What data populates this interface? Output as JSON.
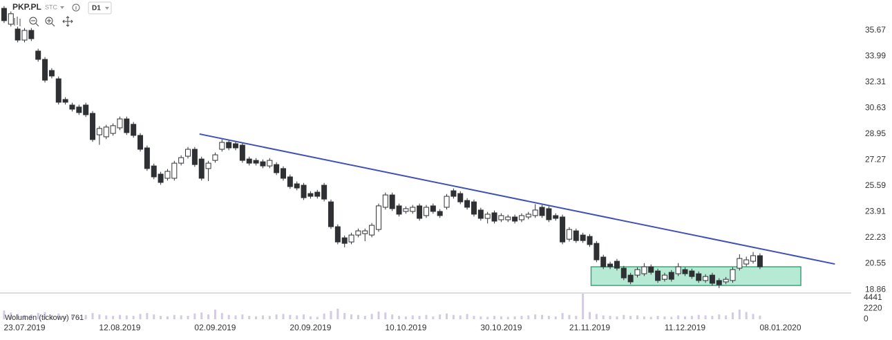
{
  "chart_data": {
    "type": "candlestick",
    "title": "PKP.PL",
    "source": "STC",
    "interval": "D1",
    "volume_label": "Wolumen (tickowy)",
    "colors": {
      "down": "#2f3033",
      "up": "#ffffff",
      "outline": "#2f3033",
      "volume": "#d3cbe3"
    },
    "xlim": [
      -0.6,
      124.2
    ],
    "ylim": [
      18.64,
      37.64
    ],
    "yticks": [
      35.67,
      33.99,
      32.31,
      30.63,
      28.95,
      27.27,
      25.59,
      23.91,
      22.23,
      20.55,
      18.86
    ],
    "volume_ylim": [
      0,
      5444
    ],
    "volume_yticks": [
      4441,
      2220,
      0
    ],
    "xticks": [
      {
        "value": 3,
        "label": "23.07.2019"
      },
      {
        "value": 17,
        "label": "12.08.2019"
      },
      {
        "value": 31,
        "label": "02.09.2019"
      },
      {
        "value": 45,
        "label": "20.09.2019"
      },
      {
        "value": 59,
        "label": "10.10.2019"
      },
      {
        "value": 73,
        "label": "30.10.2019"
      },
      {
        "value": 86,
        "label": "21.11.2019"
      },
      {
        "value": 100,
        "label": "11.12.2019"
      },
      {
        "value": 114,
        "label": "08.01.2020"
      }
    ],
    "ohlc": [
      [
        37.1,
        37.25,
        36.15,
        36.3
      ],
      [
        36.07,
        36.9,
        35.92,
        36.75
      ],
      [
        35.76,
        35.91,
        34.89,
        35.04
      ],
      [
        35.04,
        35.82,
        34.89,
        35.67
      ],
      [
        35.67,
        35.82,
        34.98,
        35.13
      ],
      [
        34.33,
        34.48,
        33.64,
        33.79
      ],
      [
        33.79,
        33.94,
        32.29,
        32.44
      ],
      [
        33.07,
        33.22,
        32.56,
        32.71
      ],
      [
        32.53,
        32.68,
        30.86,
        31.01
      ],
      [
        31.19,
        31.34,
        30.86,
        31.01
      ],
      [
        30.83,
        30.98,
        30.41,
        30.56
      ],
      [
        30.7,
        30.85,
        30.19,
        30.34
      ],
      [
        30.83,
        30.98,
        30.05,
        30.2
      ],
      [
        30.29,
        30.44,
        28.44,
        28.59
      ],
      [
        28.9,
        29.46,
        28.25,
        29.31
      ],
      [
        28.77,
        29.55,
        28.62,
        29.4
      ],
      [
        28.99,
        29.64,
        28.84,
        29.49
      ],
      [
        29.35,
        30.08,
        29.2,
        29.93
      ],
      [
        29.93,
        30.08,
        28.89,
        29.04
      ],
      [
        29.58,
        29.73,
        28.71,
        28.86
      ],
      [
        28.86,
        29.01,
        27.81,
        27.96
      ],
      [
        28.05,
        28.2,
        26.56,
        26.71
      ],
      [
        26.88,
        27.03,
        26.02,
        26.17
      ],
      [
        26.35,
        26.5,
        25.66,
        25.81
      ],
      [
        26.08,
        26.68,
        25.93,
        26.53
      ],
      [
        26.08,
        27.21,
        25.93,
        27.06
      ],
      [
        27.06,
        27.57,
        26.91,
        27.42
      ],
      [
        27.51,
        28.11,
        27.36,
        27.96
      ],
      [
        27.96,
        28.11,
        26.82,
        26.97
      ],
      [
        27.33,
        27.48,
        25.93,
        26.08
      ],
      [
        26.71,
        27.21,
        25.9,
        27.06
      ],
      [
        27.24,
        27.75,
        27.09,
        27.6
      ],
      [
        27.96,
        28.6,
        27.81,
        28.41
      ],
      [
        28.41,
        28.56,
        27.9,
        28.05
      ],
      [
        28.32,
        28.47,
        27.9,
        28.05
      ],
      [
        28.23,
        28.38,
        27.09,
        27.24
      ],
      [
        27.33,
        27.48,
        26.91,
        27.06
      ],
      [
        27.24,
        27.39,
        26.91,
        27.06
      ],
      [
        27.15,
        27.3,
        26.73,
        26.88
      ],
      [
        26.88,
        27.39,
        26.73,
        27.24
      ],
      [
        26.97,
        27.12,
        26.29,
        26.44
      ],
      [
        26.71,
        26.86,
        25.93,
        26.08
      ],
      [
        26.17,
        26.32,
        25.39,
        25.54
      ],
      [
        25.72,
        25.87,
        25.3,
        25.45
      ],
      [
        25.63,
        25.78,
        24.67,
        24.82
      ],
      [
        25.09,
        25.24,
        24.76,
        24.91
      ],
      [
        25.18,
        25.33,
        24.76,
        24.91
      ],
      [
        25.63,
        25.78,
        24.58,
        24.73
      ],
      [
        24.55,
        24.7,
        22.79,
        22.94
      ],
      [
        22.94,
        23.09,
        21.8,
        21.95
      ],
      [
        22.22,
        22.37,
        21.6,
        21.86
      ],
      [
        21.95,
        22.55,
        21.8,
        22.4
      ],
      [
        22.4,
        22.82,
        22.25,
        22.67
      ],
      [
        22.49,
        22.82,
        22.0,
        22.67
      ],
      [
        22.4,
        23.18,
        22.25,
        23.03
      ],
      [
        22.76,
        24.44,
        22.61,
        24.29
      ],
      [
        24.2,
        25.15,
        24.05,
        25.0
      ],
      [
        25.0,
        25.15,
        23.96,
        24.11
      ],
      [
        24.29,
        24.44,
        23.6,
        23.75
      ],
      [
        23.93,
        24.26,
        23.78,
        24.11
      ],
      [
        23.93,
        24.35,
        23.78,
        24.2
      ],
      [
        24.29,
        24.44,
        23.33,
        23.48
      ],
      [
        23.66,
        24.35,
        23.51,
        24.2
      ],
      [
        24.29,
        24.44,
        23.78,
        23.93
      ],
      [
        23.93,
        24.08,
        23.51,
        23.66
      ],
      [
        24.2,
        25.06,
        24.05,
        24.91
      ],
      [
        25.27,
        25.42,
        24.76,
        24.91
      ],
      [
        25.09,
        25.24,
        24.4,
        24.55
      ],
      [
        24.64,
        24.79,
        24.05,
        24.2
      ],
      [
        24.55,
        24.7,
        23.6,
        23.75
      ],
      [
        24.02,
        24.17,
        23.33,
        23.48
      ],
      [
        23.48,
        23.9,
        23.15,
        23.75
      ],
      [
        23.84,
        23.99,
        23.15,
        23.3
      ],
      [
        23.39,
        23.81,
        23.24,
        23.66
      ],
      [
        23.39,
        23.72,
        23.24,
        23.57
      ],
      [
        23.57,
        23.72,
        23.15,
        23.3
      ],
      [
        23.39,
        23.81,
        23.24,
        23.66
      ],
      [
        23.57,
        23.9,
        23.42,
        23.75
      ],
      [
        23.66,
        24.4,
        23.51,
        24.02
      ],
      [
        24.2,
        24.35,
        23.51,
        23.66
      ],
      [
        24.11,
        24.26,
        23.24,
        23.39
      ],
      [
        23.66,
        23.81,
        23.33,
        23.48
      ],
      [
        23.57,
        23.72,
        21.8,
        21.95
      ],
      [
        22.13,
        22.91,
        21.98,
        22.76
      ],
      [
        22.67,
        22.82,
        21.89,
        22.04
      ],
      [
        22.4,
        22.55,
        21.89,
        22.04
      ],
      [
        22.31,
        22.46,
        21.63,
        21.78
      ],
      [
        21.86,
        22.01,
        20.64,
        20.79
      ],
      [
        20.97,
        21.12,
        20.19,
        20.34
      ],
      [
        20.52,
        20.67,
        20.19,
        20.34
      ],
      [
        20.7,
        20.85,
        20.1,
        20.25
      ],
      [
        20.25,
        20.4,
        19.47,
        19.62
      ],
      [
        19.8,
        19.95,
        19.21,
        19.36
      ],
      [
        19.8,
        20.31,
        19.65,
        20.16
      ],
      [
        19.89,
        20.58,
        19.74,
        20.34
      ],
      [
        20.34,
        20.49,
        19.83,
        19.98
      ],
      [
        20.07,
        20.22,
        19.3,
        19.45
      ],
      [
        19.53,
        19.95,
        19.38,
        19.8
      ],
      [
        19.98,
        20.13,
        19.38,
        19.53
      ],
      [
        19.89,
        20.58,
        19.74,
        20.34
      ],
      [
        20.16,
        20.31,
        19.74,
        19.89
      ],
      [
        20.07,
        20.22,
        19.56,
        19.71
      ],
      [
        19.89,
        20.04,
        19.3,
        19.45
      ],
      [
        19.45,
        19.86,
        19.3,
        19.71
      ],
      [
        19.8,
        19.95,
        19.12,
        19.27
      ],
      [
        19.45,
        19.6,
        18.96,
        19.18
      ],
      [
        19.36,
        19.68,
        19.21,
        19.53
      ],
      [
        19.45,
        20.31,
        19.3,
        20.16
      ],
      [
        20.25,
        21.15,
        20.1,
        20.88
      ],
      [
        20.52,
        21.0,
        20.37,
        20.79
      ],
      [
        20.7,
        21.3,
        20.55,
        21.06
      ],
      [
        21.06,
        21.21,
        20.19,
        20.34
      ]
    ],
    "volume": [
      1800,
      1400,
      1100,
      900,
      1000,
      1300,
      1500,
      900,
      1200,
      700,
      800,
      600,
      900,
      1300,
      1000,
      800,
      700,
      900,
      800,
      700,
      1100,
      1300,
      1000,
      700,
      600,
      900,
      800,
      700,
      1200,
      1400,
      1000,
      2000,
      1300,
      900,
      800,
      1000,
      700,
      600,
      800,
      700,
      1000,
      1100,
      900,
      800,
      1000,
      600,
      500,
      1200,
      1700,
      2200,
      1300,
      1000,
      900,
      700,
      1100,
      1600,
      1400,
      1000,
      700,
      600,
      800,
      700,
      900,
      600,
      1000,
      1200,
      900,
      800,
      1100,
      700,
      600,
      500,
      700,
      600,
      500,
      600,
      700,
      800,
      1000,
      900,
      700,
      600,
      1300,
      900,
      700,
      5300,
      1500,
      1100,
      800,
      700,
      600,
      900,
      700,
      800,
      600,
      500,
      700,
      600,
      500,
      800,
      600,
      700,
      900,
      800,
      700,
      1000,
      800,
      1400,
      2000,
      1500,
      1100,
      761
    ],
    "trendline": {
      "x": [
        28.7,
        122.0
      ],
      "y": [
        28.95,
        20.52
      ],
      "color": "#3f51b5"
    },
    "zone": {
      "xlim": [
        86.2,
        117.0
      ],
      "ylim": [
        19.13,
        20.34
      ],
      "color": "#b7ead4",
      "stroke": "#3aa579"
    }
  }
}
